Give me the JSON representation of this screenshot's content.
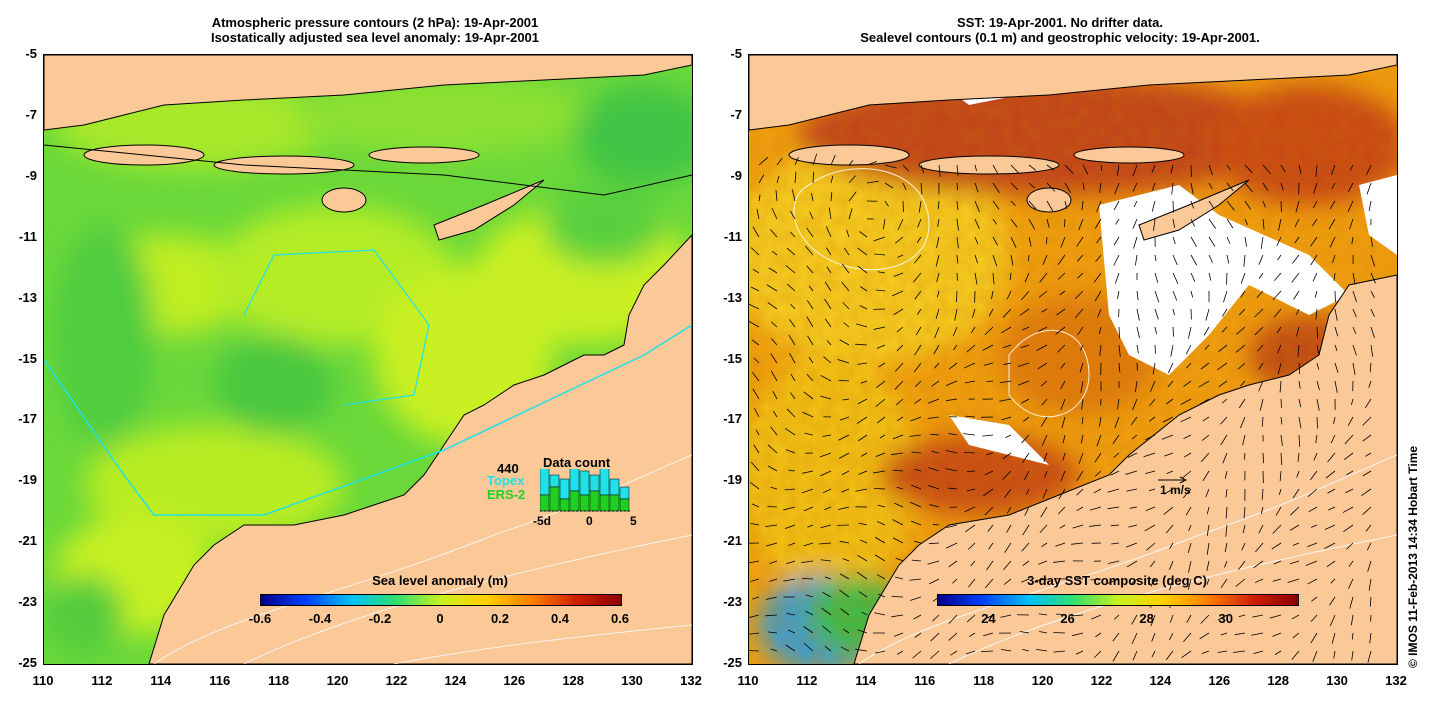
{
  "left_panel": {
    "title_line1": "Atmospheric pressure contours (2 hPa): 19-Apr-2001",
    "title_line2": "Isostatically adjusted sea level anomaly: 19-Apr-2001",
    "colorbar": {
      "label": "Sea level anomaly (m)",
      "ticks": [
        "-0.6",
        "-0.4",
        "-0.2",
        "0",
        "0.2",
        "0.4",
        "0.6"
      ]
    },
    "data_count": {
      "title": "Data count",
      "count": "440",
      "topex_label": "Topex",
      "ers_label": "ERS-2",
      "xticks": [
        "-5d",
        "0",
        "5"
      ],
      "topex_values": [
        8,
        3,
        5,
        8,
        6,
        4,
        7,
        4,
        3
      ],
      "ers_values": [
        4,
        6,
        3,
        5,
        4,
        5,
        4,
        4,
        3
      ]
    }
  },
  "right_panel": {
    "title_line1": "SST: 19-Apr-2001. No drifter data.",
    "title_line2": "Sealevel contours (0.1 m) and geostrophic velocity: 19-Apr-2001.",
    "colorbar": {
      "label": "3-day SST composite (deg C)",
      "ticks": [
        "24",
        "26",
        "28",
        "30"
      ]
    },
    "velocity_scale": "1 m/s"
  },
  "axes": {
    "lat_ticks": [
      "-5",
      "-7",
      "-9",
      "-11",
      "-13",
      "-15",
      "-17",
      "-19",
      "-21",
      "-23",
      "-25"
    ],
    "lon_ticks": [
      "110",
      "112",
      "114",
      "116",
      "118",
      "120",
      "122",
      "124",
      "126",
      "128",
      "130",
      "132"
    ]
  },
  "credit": "© IMOS 11-Feb-2013 14:34 Hobart Time",
  "colors": {
    "land": "#fbc898",
    "sla_green": "#5ad23c",
    "sla_yellow": "#c8f020",
    "sst_orange": "#e07a10",
    "sst_red": "#b83a10",
    "topex": "#20e0e8",
    "ers": "#20d020"
  }
}
